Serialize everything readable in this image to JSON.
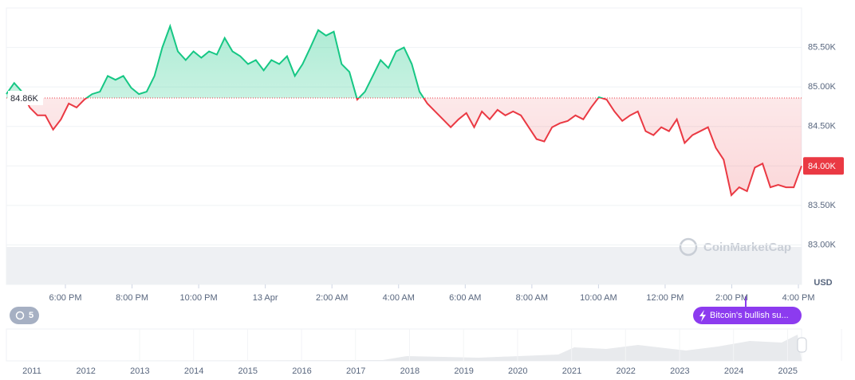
{
  "chart_data": {
    "type": "line",
    "series": [
      {
        "name": "BTC",
        "color_up": "#16c784",
        "color_down": "#ea3943",
        "values": [
          84910,
          85050,
          84940,
          84740,
          84640,
          84640,
          84460,
          84590,
          84790,
          84740,
          84840,
          84910,
          84940,
          85140,
          85090,
          85140,
          84990,
          84910,
          84940,
          85140,
          85500,
          85770,
          85450,
          85340,
          85450,
          85370,
          85450,
          85410,
          85620,
          85450,
          85390,
          85290,
          85340,
          85210,
          85340,
          85290,
          85390,
          85140,
          85290,
          85500,
          85720,
          85650,
          85700,
          85290,
          85190,
          84840,
          84940,
          85140,
          85340,
          85240,
          85450,
          85500,
          85290,
          84940,
          84790,
          84690,
          84590,
          84490,
          84590,
          84670,
          84490,
          84690,
          84590,
          84710,
          84640,
          84690,
          84640,
          84490,
          84340,
          84310,
          84490,
          84540,
          84570,
          84640,
          84590,
          84740,
          84870,
          84840,
          84690,
          84570,
          84640,
          84690,
          84440,
          84390,
          84490,
          84440,
          84590,
          84290,
          84390,
          84440,
          84490,
          84230,
          84080,
          83630,
          83730,
          83680,
          83980,
          84030,
          83730,
          83760,
          83730,
          83730,
          84000
        ]
      }
    ],
    "baseline": {
      "value": 84860,
      "label": "84.86K"
    },
    "last_price": {
      "value": 84000,
      "label": "84.00K"
    },
    "ylim": [
      82500,
      86000
    ],
    "yticks": [
      {
        "value": 85500,
        "label": "85.50K"
      },
      {
        "value": 85000,
        "label": "85.00K"
      },
      {
        "value": 84500,
        "label": "84.50K"
      },
      {
        "value": 84000,
        "label": "84.00K"
      },
      {
        "value": 83500,
        "label": "83.50K"
      },
      {
        "value": 83000,
        "label": "83.00K"
      }
    ],
    "y_unit": "USD",
    "x_tick_labels": [
      "6:00 PM",
      "8:00 PM",
      "10:00 PM",
      "13 Apr",
      "2:00 AM",
      "4:00 AM",
      "6:00 AM",
      "8:00 AM",
      "10:00 AM",
      "12:00 PM",
      "2:00 PM",
      "4:00 PM"
    ],
    "grid": true,
    "watermark": "CoinMarketCap",
    "badge": "5",
    "annotation": "Bitcoin's bullish su...",
    "navigator_labels": [
      "2011",
      "2012",
      "2013",
      "2014",
      "2015",
      "2016",
      "2017",
      "2018",
      "2019",
      "2020",
      "2021",
      "2022",
      "2023",
      "2024",
      "2025"
    ]
  }
}
